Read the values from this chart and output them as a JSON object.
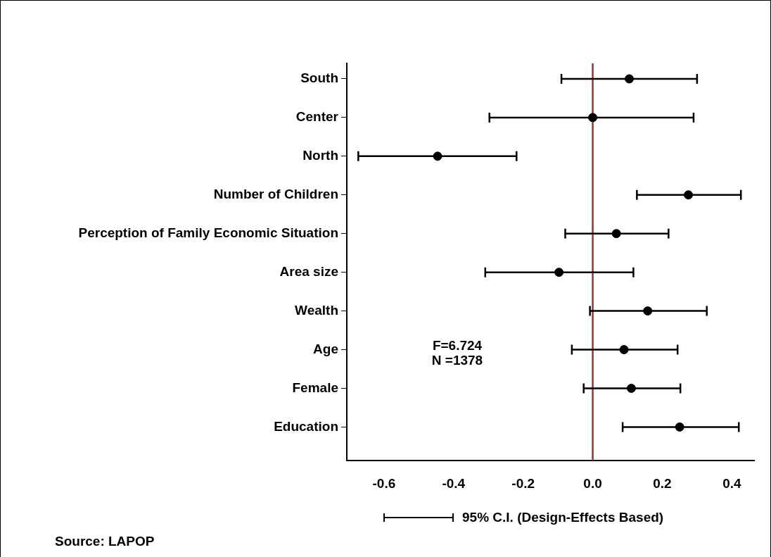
{
  "chart_data": {
    "type": "scatter",
    "orientation": "horizontal",
    "categories": [
      "South",
      "Center",
      "North",
      "Number of Children",
      "Perception of Family Economic Situation",
      "Area size",
      "Wealth",
      "Age",
      "Female",
      "Education"
    ],
    "series": [
      {
        "name": "95% C.I. (Design-Effects Based)",
        "color": "#000000",
        "values": [
          0.105,
          0.0,
          -0.446,
          0.275,
          0.068,
          -0.097,
          0.158,
          0.09,
          0.111,
          0.25
        ],
        "errors": [
          [
            -0.09,
            0.3
          ],
          [
            -0.297,
            0.29
          ],
          [
            -0.674,
            -0.219
          ],
          [
            0.127,
            0.426
          ],
          [
            -0.079,
            0.218
          ],
          [
            -0.309,
            0.117
          ],
          [
            -0.008,
            0.328
          ],
          [
            -0.06,
            0.244
          ],
          [
            -0.026,
            0.252
          ],
          [
            0.086,
            0.42
          ]
        ]
      }
    ],
    "xlim": [
      -0.707,
      0.464
    ],
    "xticks": [
      -0.6,
      -0.4,
      -0.2,
      {
        "value": 0,
        "label": "0.0"
      },
      0.2,
      0.4
    ],
    "ref_lines": [
      {
        "axis": "x",
        "value": 0,
        "color": "#a0302c"
      }
    ],
    "marker": "circle",
    "legend": "bottom",
    "grid": false,
    "annotations": [
      "F=6.724",
      "N =1378",
      "Source: LAPOP"
    ]
  }
}
